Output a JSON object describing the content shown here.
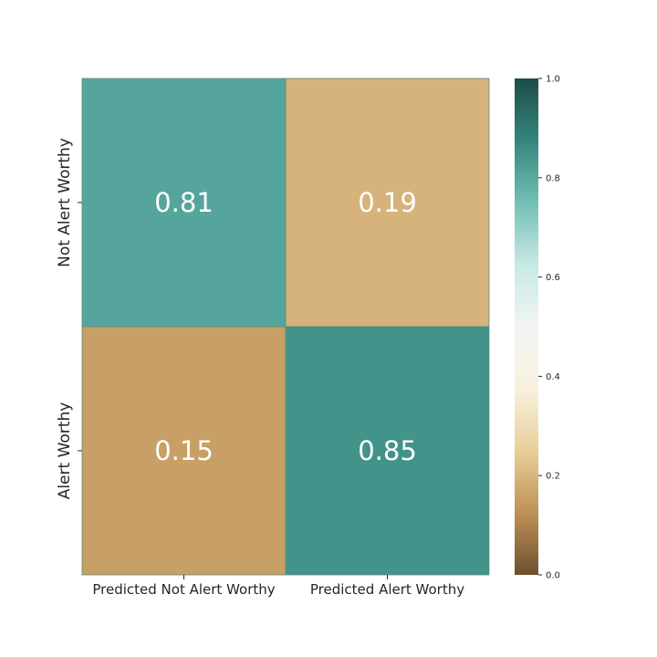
{
  "chart_data": {
    "type": "heatmap",
    "title": "",
    "xlabel": "",
    "ylabel": "",
    "x_categories": [
      "Predicted Not Alert Worthy",
      "Predicted Alert Worthy"
    ],
    "y_categories": [
      "Not Alert Worthy",
      "Alert Worthy"
    ],
    "values": [
      [
        0.81,
        0.19
      ],
      [
        0.15,
        0.85
      ]
    ],
    "value_labels": [
      "0.81",
      "0.19",
      "0.15",
      "0.85"
    ],
    "colorbar": {
      "range": [
        0.0,
        1.0
      ],
      "ticks": [
        0.0,
        0.2,
        0.4,
        0.6,
        0.8,
        1.0
      ],
      "tick_labels": [
        "0.0",
        "0.2",
        "0.4",
        "0.6",
        "0.8",
        "1.0"
      ],
      "colormap": "brown-white-teal diverging",
      "stops": [
        "#6e5130",
        "#c09257",
        "#e9d29a",
        "#faf3e1",
        "#f4f7f6",
        "#c9ebe6",
        "#74c1b7",
        "#35877e",
        "#1e4e49"
      ]
    }
  }
}
